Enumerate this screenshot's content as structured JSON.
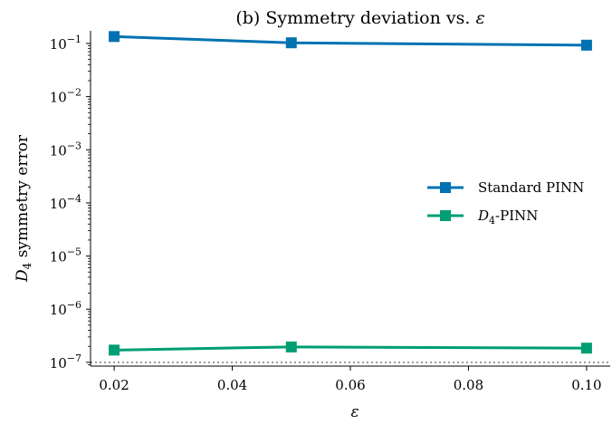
{
  "chart_data": {
    "type": "line",
    "title_plain": "(b) Symmetry deviation vs. ",
    "title_symbol": "ε",
    "xlabel": "ε",
    "ylabel_symbol": "D",
    "ylabel_subscript": "4",
    "ylabel_rest": " symmetry error",
    "x": [
      0.02,
      0.05,
      0.1
    ],
    "xlim": [
      0.016,
      0.104
    ],
    "x_ticks": [
      {
        "value": 0.02,
        "label": "0.02"
      },
      {
        "value": 0.04,
        "label": "0.04"
      },
      {
        "value": 0.06,
        "label": "0.06"
      },
      {
        "value": 0.08,
        "label": "0.08"
      },
      {
        "value": 0.1,
        "label": "0.10"
      }
    ],
    "y_scale": "log",
    "ylim": [
      8.5e-08,
      0.16
    ],
    "y_ticks": [
      {
        "exp": -7,
        "base": "10",
        "sup": "−7"
      },
      {
        "exp": -6,
        "base": "10",
        "sup": "−6"
      },
      {
        "exp": -5,
        "base": "10",
        "sup": "−5"
      },
      {
        "exp": -4,
        "base": "10",
        "sup": "−4"
      },
      {
        "exp": -3,
        "base": "10",
        "sup": "−3"
      },
      {
        "exp": -2,
        "base": "10",
        "sup": "−2"
      },
      {
        "exp": -1,
        "base": "10",
        "sup": "−1"
      }
    ],
    "reference_line": {
      "y": 1e-07,
      "style": "dotted",
      "color": "#999999"
    },
    "series": [
      {
        "label_plain": "Standard PINN",
        "color": "#0072B2",
        "marker": "square",
        "values": [
          0.135,
          0.103,
          0.093
        ]
      },
      {
        "label_symbol": "D",
        "label_subscript": "4",
        "label_rest": "-PINN",
        "color": "#009E73",
        "marker": "square",
        "values": [
          1.7e-07,
          1.95e-07,
          1.85e-07
        ]
      }
    ],
    "legend_position": "center-right",
    "grid": false
  }
}
